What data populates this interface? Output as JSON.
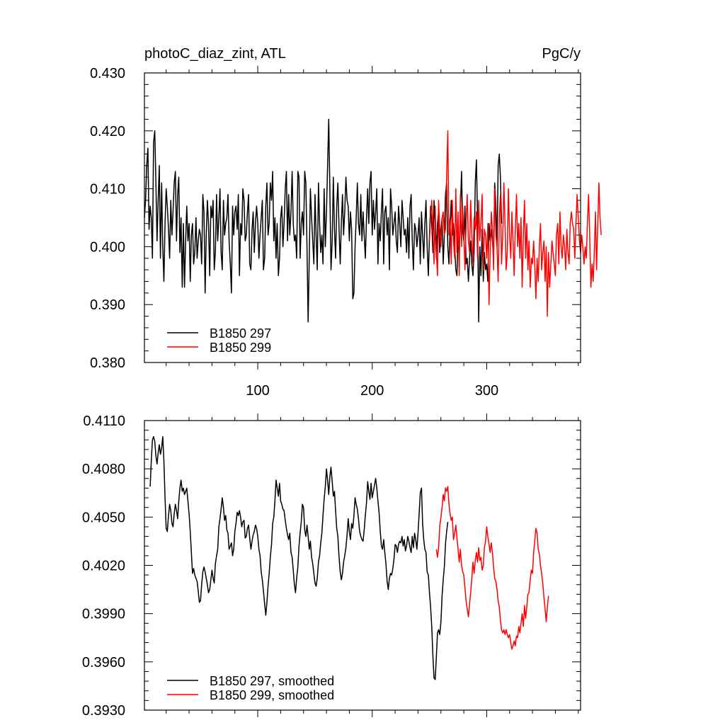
{
  "chart_data": [
    {
      "type": "line",
      "title_left": "photoC_diaz_zint, ATL",
      "title_right": "PgC/y",
      "xlim": [
        1,
        382
      ],
      "ylim": [
        0.38,
        0.43
      ],
      "x_ticks": [
        100,
        200,
        300
      ],
      "x_tick_labels": [
        "100",
        "200",
        "300"
      ],
      "y_ticks": [
        0.38,
        0.39,
        0.4,
        0.41,
        0.42,
        0.43
      ],
      "y_tick_labels": [
        "0.380",
        "0.390",
        "0.400",
        "0.410",
        "0.420",
        "0.430"
      ],
      "legend_position": "bottom-left",
      "series": [
        {
          "name": "B1850 297",
          "color": "#000000",
          "x_start": 1,
          "x_step": 1,
          "values": [
            0.405,
            0.408,
            0.414,
            0.417,
            0.403,
            0.407,
            0.405,
            0.398,
            0.418,
            0.42,
            0.411,
            0.401,
            0.408,
            0.414,
            0.398,
            0.411,
            0.4,
            0.394,
            0.404,
            0.41,
            0.407,
            0.403,
            0.398,
            0.408,
            0.402,
            0.406,
            0.411,
            0.413,
            0.401,
            0.409,
            0.412,
            0.399,
            0.405,
            0.393,
            0.404,
            0.393,
            0.401,
            0.407,
            0.401,
            0.404,
            0.394,
            0.402,
            0.404,
            0.397,
            0.399,
            0.405,
            0.398,
            0.401,
            0.403,
            0.402,
            0.397,
            0.409,
            0.406,
            0.392,
            0.402,
            0.408,
            0.404,
            0.395,
            0.407,
            0.405,
            0.408,
            0.396,
            0.399,
            0.409,
            0.401,
            0.405,
            0.41,
            0.399,
            0.396,
            0.408,
            0.402,
            0.404,
            0.405,
            0.409,
            0.401,
            0.397,
            0.392,
            0.407,
            0.402,
            0.406,
            0.407,
            0.403,
            0.409,
            0.395,
            0.404,
            0.402,
            0.41,
            0.408,
            0.401,
            0.402,
            0.406,
            0.409,
            0.397,
            0.396,
            0.403,
            0.406,
            0.399,
            0.404,
            0.407,
            0.404,
            0.398,
            0.402,
            0.405,
            0.408,
            0.396,
            0.398,
            0.407,
            0.411,
            0.402,
            0.404,
            0.411,
            0.408,
            0.413,
            0.401,
            0.405,
            0.398,
            0.404,
            0.395,
            0.398,
            0.405,
            0.407,
            0.4,
            0.404,
            0.41,
            0.413,
            0.401,
            0.409,
            0.402,
            0.406,
            0.413,
            0.404,
            0.401,
            0.402,
            0.398,
            0.413,
            0.412,
            0.398,
            0.404,
            0.406,
            0.402,
            0.413,
            0.411,
            0.4,
            0.387,
            0.398,
            0.41,
            0.405,
            0.401,
            0.397,
            0.409,
            0.402,
            0.396,
            0.411,
            0.404,
            0.399,
            0.402,
            0.397,
            0.41,
            0.4,
            0.406,
            0.414,
            0.422,
            0.41,
            0.396,
            0.401,
            0.412,
            0.403,
            0.398,
            0.407,
            0.411,
            0.403,
            0.397,
            0.404,
            0.409,
            0.402,
            0.406,
            0.412,
            0.408,
            0.407,
            0.401,
            0.406,
            0.403,
            0.391,
            0.392,
            0.4,
            0.405,
            0.411,
            0.404,
            0.402,
            0.409,
            0.401,
            0.406,
            0.402,
            0.398,
            0.405,
            0.41,
            0.404,
            0.411,
            0.413,
            0.402,
            0.408,
            0.403,
            0.406,
            0.41,
            0.397,
            0.404,
            0.401,
            0.406,
            0.41,
            0.397,
            0.406,
            0.407,
            0.402,
            0.405,
            0.396,
            0.41,
            0.407,
            0.402,
            0.404,
            0.406,
            0.401,
            0.399,
            0.407,
            0.404,
            0.4,
            0.408,
            0.405,
            0.402,
            0.403,
            0.399,
            0.405,
            0.398,
            0.407,
            0.409,
            0.401,
            0.396,
            0.404,
            0.403,
            0.4,
            0.402,
            0.405,
            0.397,
            0.406,
            0.402,
            0.398,
            0.404,
            0.408,
            0.4,
            0.395,
            0.402,
            0.407,
            0.404,
            0.399,
            0.408,
            0.403,
            0.398,
            0.404,
            0.406,
            0.399,
            0.403,
            0.405,
            0.397,
            0.402,
            0.409,
            0.411,
            0.4,
            0.397,
            0.403,
            0.408,
            0.402,
            0.404,
            0.4,
            0.396,
            0.395,
            0.402,
            0.398,
            0.406,
            0.413,
            0.403,
            0.401,
            0.407,
            0.397,
            0.398,
            0.394,
            0.398,
            0.401,
            0.397,
            0.395,
            0.399,
            0.411,
            0.415,
            0.405,
            0.387,
            0.4,
            0.395,
            0.403,
            0.394,
            0.399,
            0.396,
            0.397,
            0.394,
            0.404,
            0.401,
            0.403,
            0.401,
            0.398,
            0.411,
            0.407,
            0.4,
            0.414,
            0.416,
            0.412,
            0.404
          ]
        },
        {
          "name": "B1850 299",
          "color": "#ff0000",
          "x_start": 250,
          "x_step": 1,
          "values": [
            0.401,
            0.405,
            0.408,
            0.403,
            0.397,
            0.407,
            0.399,
            0.395,
            0.408,
            0.403,
            0.4,
            0.405,
            0.406,
            0.402,
            0.403,
            0.412,
            0.42,
            0.402,
            0.405,
            0.397,
            0.408,
            0.401,
            0.398,
            0.41,
            0.399,
            0.406,
            0.395,
            0.409,
            0.4,
            0.407,
            0.402,
            0.396,
            0.404,
            0.409,
            0.401,
            0.399,
            0.408,
            0.402,
            0.397,
            0.405,
            0.403,
            0.406,
            0.398,
            0.408,
            0.401,
            0.404,
            0.409,
            0.396,
            0.403,
            0.402,
            0.398,
            0.404,
            0.39,
            0.399,
            0.406,
            0.403,
            0.396,
            0.41,
            0.402,
            0.4,
            0.394,
            0.405,
            0.409,
            0.397,
            0.402,
            0.411,
            0.404,
            0.396,
            0.399,
            0.41,
            0.402,
            0.398,
            0.406,
            0.401,
            0.395,
            0.403,
            0.409,
            0.4,
            0.404,
            0.398,
            0.405,
            0.393,
            0.402,
            0.408,
            0.398,
            0.404,
            0.396,
            0.401,
            0.393,
            0.398,
            0.397,
            0.401,
            0.397,
            0.391,
            0.398,
            0.394,
            0.4,
            0.404,
            0.396,
            0.399,
            0.401,
            0.394,
            0.4,
            0.388,
            0.399,
            0.393,
            0.397,
            0.401,
            0.399,
            0.397,
            0.395,
            0.402,
            0.404,
            0.397,
            0.406,
            0.4,
            0.398,
            0.402,
            0.4,
            0.396,
            0.403,
            0.399,
            0.397,
            0.404,
            0.406,
            0.404,
            0.403,
            0.398,
            0.404,
            0.409,
            0.405,
            0.401,
            0.399,
            0.402,
            0.4,
            0.397,
            0.4,
            0.398,
            0.404,
            0.409,
            0.402,
            0.393,
            0.397,
            0.394,
            0.399,
            0.406,
            0.396,
            0.404,
            0.411,
            0.405,
            0.402
          ]
        }
      ]
    },
    {
      "type": "line",
      "xlim": [
        1,
        382
      ],
      "ylim": [
        0.393,
        0.411
      ],
      "x_ticks": [
        100,
        200,
        300
      ],
      "y_ticks": [
        0.393,
        0.396,
        0.399,
        0.402,
        0.405,
        0.408,
        0.411
      ],
      "y_tick_labels": [
        "0.3930",
        "0.3960",
        "0.3990",
        "0.4020",
        "0.4050",
        "0.4080",
        "0.4110"
      ],
      "legend_position": "bottom-left",
      "series": [
        {
          "name": "B1850 297, smoothed",
          "color": "#000000",
          "x_start": 6,
          "x_step": 1,
          "values": [
            0.4069,
            0.4085,
            0.4098,
            0.41,
            0.4097,
            0.4088,
            0.4083,
            0.409,
            0.4095,
            0.4089,
            0.4093,
            0.41,
            0.4085,
            0.4062,
            0.4043,
            0.4041,
            0.4051,
            0.4058,
            0.4054,
            0.4046,
            0.4044,
            0.4052,
            0.4058,
            0.4054,
            0.4049,
            0.406,
            0.4068,
            0.4073,
            0.4066,
            0.4068,
            0.4064,
            0.4066,
            0.4068,
            0.406,
            0.4052,
            0.4041,
            0.4028,
            0.4015,
            0.4018,
            0.4014,
            0.4012,
            0.401,
            0.4004,
            0.3997,
            0.3998,
            0.4008,
            0.4016,
            0.4019,
            0.4016,
            0.4012,
            0.4008,
            0.4003,
            0.4005,
            0.4011,
            0.4017,
            0.4012,
            0.4009,
            0.4021,
            0.4026,
            0.403,
            0.4044,
            0.4049,
            0.4055,
            0.4062,
            0.4056,
            0.4048,
            0.4051,
            0.4042,
            0.404,
            0.403,
            0.4032,
            0.4034,
            0.4026,
            0.403,
            0.4041,
            0.4046,
            0.4053,
            0.4051,
            0.4054,
            0.405,
            0.4044,
            0.4047,
            0.4048,
            0.4037,
            0.4038,
            0.4043,
            0.4045,
            0.4037,
            0.403,
            0.4035,
            0.4039,
            0.4041,
            0.4045,
            0.4043,
            0.4038,
            0.403,
            0.4026,
            0.4016,
            0.4011,
            0.4004,
            0.3996,
            0.3989,
            0.3997,
            0.4007,
            0.4015,
            0.4025,
            0.4033,
            0.4046,
            0.405,
            0.406,
            0.4073,
            0.4068,
            0.4063,
            0.4071,
            0.406,
            0.4058,
            0.4055,
            0.4054,
            0.4048,
            0.4043,
            0.4039,
            0.4036,
            0.404,
            0.4028,
            0.4025,
            0.4017,
            0.4008,
            0.4003,
            0.4012,
            0.4019,
            0.4032,
            0.404,
            0.4047,
            0.4058,
            0.4056,
            0.4042,
            0.4038,
            0.4045,
            0.4038,
            0.403,
            0.4035,
            0.4025,
            0.4021,
            0.4015,
            0.4009,
            0.4007,
            0.4012,
            0.4022,
            0.4026,
            0.4034,
            0.404,
            0.4051,
            0.4061,
            0.4069,
            0.408,
            0.4073,
            0.4064,
            0.4075,
            0.4081,
            0.4072,
            0.4063,
            0.4066,
            0.4054,
            0.4043,
            0.4038,
            0.4025,
            0.4016,
            0.4011,
            0.4015,
            0.4022,
            0.4026,
            0.4031,
            0.4039,
            0.4049,
            0.4041,
            0.4036,
            0.4046,
            0.4043,
            0.4051,
            0.4062,
            0.4058,
            0.4055,
            0.4049,
            0.4041,
            0.4038,
            0.4036,
            0.4035,
            0.4042,
            0.4051,
            0.4059,
            0.4072,
            0.4066,
            0.4061,
            0.4071,
            0.4062,
            0.4066,
            0.407,
            0.4074,
            0.4068,
            0.406,
            0.4053,
            0.4041,
            0.4032,
            0.403,
            0.4036,
            0.4028,
            0.4021,
            0.401,
            0.4005,
            0.4012,
            0.4015,
            0.4014,
            0.4018,
            0.4024,
            0.4033,
            0.4032,
            0.4028,
            0.4033,
            0.4035,
            0.4034,
            0.4038,
            0.4032,
            0.4036,
            0.4029,
            0.4032,
            0.4038,
            0.4035,
            0.4031,
            0.4028,
            0.4038,
            0.4031,
            0.404,
            0.4036,
            0.403,
            0.404,
            0.4052,
            0.4065,
            0.4068,
            0.4046,
            0.4036,
            0.403,
            0.4028,
            0.4016,
            0.4014,
            0.4003,
            0.3994,
            0.3982,
            0.3964,
            0.395,
            0.3949,
            0.3963,
            0.3978,
            0.398,
            0.3977,
            0.3985,
            0.4001,
            0.4011,
            0.4019,
            0.4033,
            0.4041,
            0.4047
          ]
        },
        {
          "name": "B1850 299, smoothed",
          "color": "#ff0000",
          "x_start": 256,
          "x_step": 1,
          "values": [
            0.403,
            0.4025,
            0.4031,
            0.4044,
            0.405,
            0.4056,
            0.4064,
            0.406,
            0.4068,
            0.4066,
            0.4069,
            0.4058,
            0.4052,
            0.4048,
            0.405,
            0.4036,
            0.404,
            0.4045,
            0.4037,
            0.403,
            0.4022,
            0.403,
            0.402,
            0.4016,
            0.4014,
            0.4006,
            0.3998,
            0.3993,
            0.3988,
            0.3996,
            0.4003,
            0.4012,
            0.4022,
            0.4015,
            0.4023,
            0.4028,
            0.4022,
            0.4031,
            0.4023,
            0.4025,
            0.4017,
            0.402,
            0.4031,
            0.4035,
            0.4044,
            0.4038,
            0.4033,
            0.4028,
            0.4034,
            0.4028,
            0.4019,
            0.4012,
            0.401,
            0.4005,
            0.3998,
            0.3994,
            0.3986,
            0.398,
            0.3978,
            0.398,
            0.3977,
            0.398,
            0.3977,
            0.3975,
            0.3977,
            0.3972,
            0.3968,
            0.397,
            0.3973,
            0.397,
            0.3976,
            0.3975,
            0.3982,
            0.3978,
            0.3984,
            0.399,
            0.3982,
            0.3995,
            0.3987,
            0.3994,
            0.4002,
            0.4003,
            0.4011,
            0.4017,
            0.4015,
            0.4028,
            0.4035,
            0.4043,
            0.404,
            0.403,
            0.4027,
            0.402,
            0.4015,
            0.4009,
            0.4,
            0.3993,
            0.3985,
            0.3994,
            0.4001
          ]
        }
      ]
    }
  ]
}
